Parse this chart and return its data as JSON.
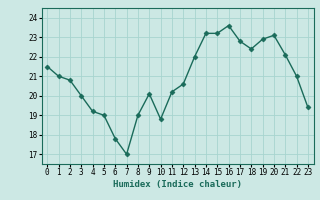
{
  "x": [
    0,
    1,
    2,
    3,
    4,
    5,
    6,
    7,
    8,
    9,
    10,
    11,
    12,
    13,
    14,
    15,
    16,
    17,
    18,
    19,
    20,
    21,
    22,
    23
  ],
  "y": [
    21.5,
    21.0,
    20.8,
    20.0,
    19.2,
    19.0,
    17.8,
    17.0,
    19.0,
    20.1,
    18.8,
    20.2,
    20.6,
    22.0,
    23.2,
    23.2,
    23.6,
    22.8,
    22.4,
    22.9,
    23.1,
    22.1,
    21.0,
    19.4
  ],
  "xlim": [
    -0.5,
    23.5
  ],
  "ylim": [
    16.5,
    24.5
  ],
  "yticks": [
    17,
    18,
    19,
    20,
    21,
    22,
    23,
    24
  ],
  "xticks": [
    0,
    1,
    2,
    3,
    4,
    5,
    6,
    7,
    8,
    9,
    10,
    11,
    12,
    13,
    14,
    15,
    16,
    17,
    18,
    19,
    20,
    21,
    22,
    23
  ],
  "xlabel": "Humidex (Indice chaleur)",
  "line_color": "#1a6b5a",
  "bg_color": "#cce8e4",
  "grid_color": "#a8d4cf"
}
